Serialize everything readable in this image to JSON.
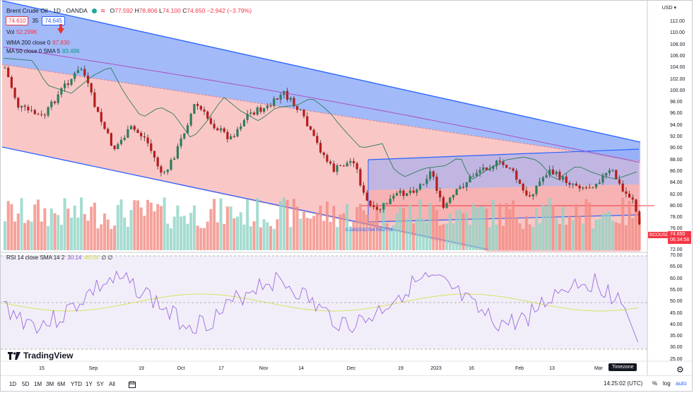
{
  "header": {
    "title": "Brent Crude Oil · 1D · OANDA",
    "ohlc": {
      "o_label": "O",
      "o": "77.592",
      "h_label": "H",
      "h": "78.806",
      "l_label": "L",
      "l": "74.100",
      "c_label": "C",
      "c": "74.650",
      "change": "−2.942 (−3.79%)"
    },
    "bid": "74.610",
    "spread": "35",
    "ask": "74.645"
  },
  "indicators": {
    "vol": {
      "label": "Vol",
      "value": "52.299K"
    },
    "wma": {
      "label": "WMA 200 close 0",
      "value": "87.830"
    },
    "ma": {
      "label": "MA 50 close 0 SMA 5",
      "value": "83.496"
    },
    "rsi": {
      "label": "RSI 14 close SMA 14 2",
      "v1": "30.14",
      "v2": "46.54",
      "v3": "∅ ∅"
    }
  },
  "price_axis": {
    "currency": "USD ▾",
    "ticks": [
      "112.00",
      "110.00",
      "108.00",
      "106.00",
      "104.00",
      "102.00",
      "100.00",
      "98.00",
      "96.00",
      "94.00",
      "92.00",
      "90.00",
      "88.00",
      "86.00",
      "84.00",
      "82.00",
      "80.00",
      "78.00",
      "76.00",
      "72.00"
    ],
    "symbol_tag": "BCOUSD",
    "last_price": "74.650",
    "countdown": "06:34:58"
  },
  "rsi_axis": {
    "ticks": [
      "70.00",
      "65.00",
      "60.00",
      "55.00",
      "50.00",
      "45.00",
      "40.00",
      "35.00",
      "30.00",
      "25.00"
    ]
  },
  "time_axis": {
    "ticks": [
      "15",
      "Sep",
      "19",
      "Oct",
      "17",
      "Nov",
      "14",
      "Dec",
      "19",
      "2023",
      "16",
      "Feb",
      "13",
      "Mar"
    ]
  },
  "annotation": {
    "fib_label": "0.18525927647652776"
  },
  "branding": {
    "logo_text": "TradingView"
  },
  "tooltip": {
    "timezone": "Timezone"
  },
  "toolbar": {
    "timeframes": [
      "1D",
      "5D",
      "1M",
      "3M",
      "6M",
      "YTD",
      "1Y",
      "5Y",
      "All"
    ],
    "clock": "14:25:02 (UTC)",
    "percent": "%",
    "log": "log",
    "auto": "auto"
  },
  "colors": {
    "up": "#26a69a",
    "down": "#ef5350",
    "blue_channel": "#2962ff",
    "wma": "#ab47bc",
    "ma": "#2e7d5b",
    "rsi": "#7e57c2",
    "rsi_ma": "#cddc39"
  }
}
